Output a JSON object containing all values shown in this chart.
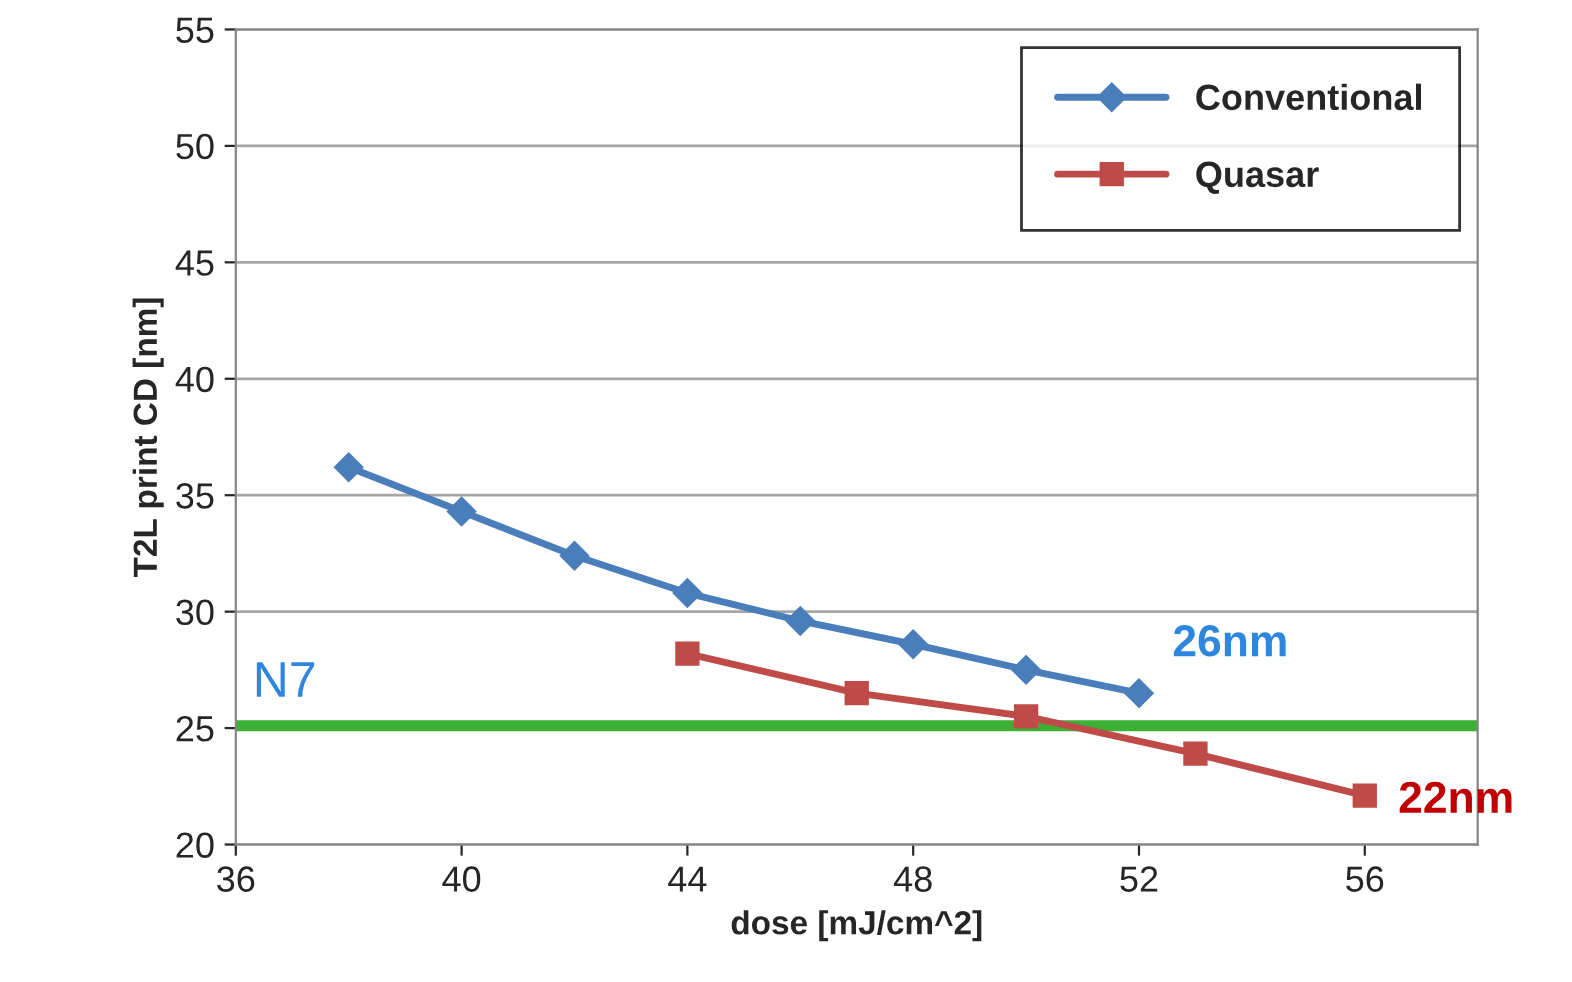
{
  "chart_data": {
    "type": "line",
    "xlabel": "dose [mJ/cm^2]",
    "ylabel": "T2L print CD [nm]",
    "xlim": [
      36,
      58
    ],
    "xticks": [
      36,
      40,
      44,
      48,
      52,
      56
    ],
    "ylim": [
      20,
      55
    ],
    "yticks": [
      20,
      25,
      30,
      35,
      40,
      45,
      50,
      55
    ],
    "grid": "y",
    "legend": "top right",
    "series": [
      {
        "name": "Conventional",
        "color": "#4a7ebb",
        "marker": "diamond",
        "x": [
          38,
          40,
          42,
          44,
          46,
          48,
          50,
          52
        ],
        "values": [
          36.2,
          34.3,
          32.4,
          30.8,
          29.6,
          28.6,
          27.5,
          26.5
        ]
      },
      {
        "name": "Quasar",
        "color": "#be4b48",
        "marker": "square",
        "x": [
          44,
          47,
          50,
          53,
          56
        ],
        "values": [
          28.2,
          26.5,
          25.5,
          23.9,
          22.1
        ]
      }
    ],
    "ref_lines": [
      {
        "axis": "y",
        "value": 25.1,
        "label": "N7",
        "color": "#3cb034"
      }
    ],
    "annotations": [
      {
        "text": "26nm",
        "x": 52,
        "y": 26.5
      },
      {
        "text": "22nm",
        "x": 56,
        "y": 22.1
      }
    ]
  }
}
